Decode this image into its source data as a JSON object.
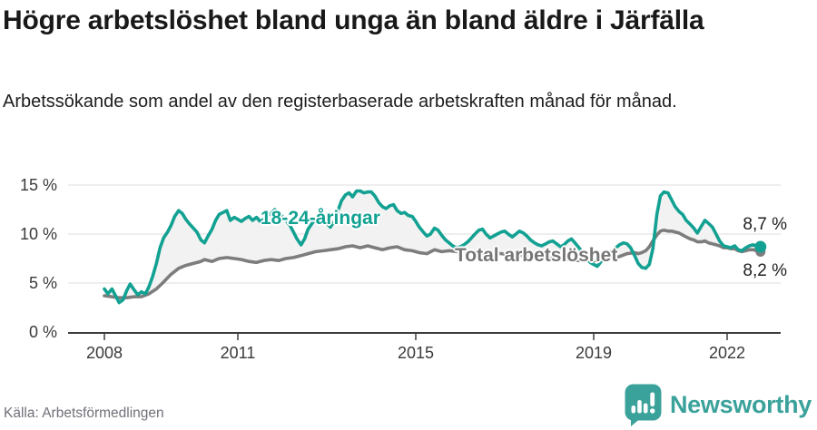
{
  "chart_data": {
    "type": "line",
    "title": "Högre arbetslöshet bland unga än bland äldre i Järfälla",
    "subtitle": "Arbetssökande som andel av den registerbaserade arbetskraften månad för månad.",
    "legend": "direct-labels-on-chart",
    "grid": "horizontal-only",
    "x_axis": {
      "ticks": [
        2008,
        2011,
        2015,
        2019,
        2022
      ],
      "range": [
        2007.2,
        2023.2
      ]
    },
    "y_axis": {
      "ticks": [
        0,
        5,
        10,
        15
      ],
      "tick_labels": [
        "0 %",
        "5 %",
        "10 %",
        "15 %"
      ],
      "range": [
        0,
        16.5
      ],
      "unit": "%"
    },
    "series": [
      {
        "name": "18-24-åringar",
        "color": "#12a192",
        "end_label": "8,7 %",
        "end_value": 8.7,
        "points": [
          [
            2008.0,
            4.4
          ],
          [
            2008.08,
            3.9
          ],
          [
            2008.17,
            4.4
          ],
          [
            2008.25,
            3.7
          ],
          [
            2008.33,
            3.0
          ],
          [
            2008.42,
            3.3
          ],
          [
            2008.5,
            4.2
          ],
          [
            2008.58,
            4.9
          ],
          [
            2008.67,
            4.3
          ],
          [
            2008.75,
            3.8
          ],
          [
            2008.83,
            4.1
          ],
          [
            2008.92,
            3.9
          ],
          [
            2009.0,
            4.6
          ],
          [
            2009.08,
            5.6
          ],
          [
            2009.17,
            7.0
          ],
          [
            2009.25,
            8.6
          ],
          [
            2009.33,
            9.6
          ],
          [
            2009.42,
            10.2
          ],
          [
            2009.5,
            10.9
          ],
          [
            2009.58,
            11.8
          ],
          [
            2009.67,
            12.4
          ],
          [
            2009.75,
            12.1
          ],
          [
            2009.83,
            11.5
          ],
          [
            2009.92,
            11.0
          ],
          [
            2010.0,
            10.6
          ],
          [
            2010.08,
            10.2
          ],
          [
            2010.17,
            9.4
          ],
          [
            2010.25,
            9.1
          ],
          [
            2010.33,
            9.8
          ],
          [
            2010.42,
            10.5
          ],
          [
            2010.5,
            11.4
          ],
          [
            2010.58,
            12.0
          ],
          [
            2010.67,
            12.2
          ],
          [
            2010.75,
            12.4
          ],
          [
            2010.83,
            11.4
          ],
          [
            2010.92,
            11.7
          ],
          [
            2011.0,
            11.5
          ],
          [
            2011.08,
            11.3
          ],
          [
            2011.17,
            11.6
          ],
          [
            2011.25,
            11.8
          ],
          [
            2011.33,
            11.4
          ],
          [
            2011.42,
            11.7
          ],
          [
            2011.5,
            11.3
          ],
          [
            2011.58,
            11.5
          ],
          [
            2011.67,
            11.9
          ],
          [
            2011.75,
            12.1
          ],
          [
            2011.83,
            12.5
          ],
          [
            2011.92,
            12.2
          ],
          [
            2012.0,
            11.8
          ],
          [
            2012.08,
            11.4
          ],
          [
            2012.17,
            10.9
          ],
          [
            2012.25,
            10.2
          ],
          [
            2012.33,
            9.5
          ],
          [
            2012.42,
            8.9
          ],
          [
            2012.5,
            9.5
          ],
          [
            2012.58,
            10.5
          ],
          [
            2012.67,
            11.1
          ],
          [
            2012.75,
            11.5
          ],
          [
            2012.83,
            11.9
          ],
          [
            2012.92,
            11.6
          ],
          [
            2013.0,
            11.1
          ],
          [
            2013.08,
            10.7
          ],
          [
            2013.17,
            11.3
          ],
          [
            2013.25,
            12.4
          ],
          [
            2013.33,
            13.4
          ],
          [
            2013.42,
            14.0
          ],
          [
            2013.5,
            14.2
          ],
          [
            2013.58,
            13.8
          ],
          [
            2013.67,
            14.4
          ],
          [
            2013.75,
            14.4
          ],
          [
            2013.83,
            14.2
          ],
          [
            2013.92,
            14.3
          ],
          [
            2014.0,
            14.3
          ],
          [
            2014.08,
            13.9
          ],
          [
            2014.17,
            13.2
          ],
          [
            2014.25,
            12.8
          ],
          [
            2014.33,
            12.6
          ],
          [
            2014.42,
            12.9
          ],
          [
            2014.5,
            13.0
          ],
          [
            2014.58,
            12.4
          ],
          [
            2014.67,
            12.1
          ],
          [
            2014.75,
            12.2
          ],
          [
            2014.83,
            11.9
          ],
          [
            2014.92,
            11.8
          ],
          [
            2015.0,
            11.3
          ],
          [
            2015.08,
            10.7
          ],
          [
            2015.17,
            10.2
          ],
          [
            2015.25,
            9.8
          ],
          [
            2015.33,
            10.0
          ],
          [
            2015.42,
            10.6
          ],
          [
            2015.5,
            10.4
          ],
          [
            2015.58,
            9.9
          ],
          [
            2015.67,
            9.4
          ],
          [
            2015.75,
            9.1
          ],
          [
            2015.83,
            8.8
          ],
          [
            2015.92,
            8.6
          ],
          [
            2016.0,
            8.7
          ],
          [
            2016.08,
            8.9
          ],
          [
            2016.17,
            9.2
          ],
          [
            2016.25,
            9.6
          ],
          [
            2016.33,
            10.0
          ],
          [
            2016.42,
            10.4
          ],
          [
            2016.5,
            10.5
          ],
          [
            2016.58,
            10.0
          ],
          [
            2016.67,
            9.6
          ],
          [
            2016.75,
            9.8
          ],
          [
            2016.83,
            10.0
          ],
          [
            2016.92,
            10.2
          ],
          [
            2017.0,
            10.3
          ],
          [
            2017.08,
            10.0
          ],
          [
            2017.17,
            9.7
          ],
          [
            2017.25,
            10.0
          ],
          [
            2017.33,
            10.3
          ],
          [
            2017.42,
            10.1
          ],
          [
            2017.5,
            9.8
          ],
          [
            2017.58,
            9.4
          ],
          [
            2017.67,
            9.1
          ],
          [
            2017.75,
            8.9
          ],
          [
            2017.83,
            8.8
          ],
          [
            2017.92,
            9.0
          ],
          [
            2018.0,
            9.2
          ],
          [
            2018.08,
            9.3
          ],
          [
            2018.17,
            9.0
          ],
          [
            2018.25,
            8.7
          ],
          [
            2018.33,
            8.9
          ],
          [
            2018.42,
            9.3
          ],
          [
            2018.5,
            9.5
          ],
          [
            2018.58,
            9.1
          ],
          [
            2018.67,
            8.6
          ],
          [
            2018.75,
            8.1
          ],
          [
            2018.83,
            7.6
          ],
          [
            2018.92,
            7.1
          ],
          [
            2019.0,
            6.9
          ],
          [
            2019.08,
            6.7
          ],
          [
            2019.17,
            7.2
          ],
          [
            2019.25,
            7.7
          ],
          [
            2019.33,
            8.0
          ],
          [
            2019.42,
            8.3
          ],
          [
            2019.5,
            8.6
          ],
          [
            2019.58,
            8.9
          ],
          [
            2019.67,
            9.1
          ],
          [
            2019.75,
            9.0
          ],
          [
            2019.83,
            8.6
          ],
          [
            2019.92,
            7.8
          ],
          [
            2020.0,
            7.0
          ],
          [
            2020.08,
            6.6
          ],
          [
            2020.17,
            6.5
          ],
          [
            2020.25,
            6.9
          ],
          [
            2020.33,
            8.5
          ],
          [
            2020.42,
            12.0
          ],
          [
            2020.5,
            13.9
          ],
          [
            2020.58,
            14.3
          ],
          [
            2020.67,
            14.2
          ],
          [
            2020.75,
            13.5
          ],
          [
            2020.83,
            12.8
          ],
          [
            2020.92,
            12.3
          ],
          [
            2021.0,
            12.0
          ],
          [
            2021.08,
            11.4
          ],
          [
            2021.17,
            11.0
          ],
          [
            2021.25,
            10.6
          ],
          [
            2021.33,
            10.1
          ],
          [
            2021.42,
            10.8
          ],
          [
            2021.5,
            11.4
          ],
          [
            2021.58,
            11.1
          ],
          [
            2021.67,
            10.7
          ],
          [
            2021.75,
            10.0
          ],
          [
            2021.83,
            9.3
          ],
          [
            2021.92,
            8.8
          ],
          [
            2022.0,
            8.7
          ],
          [
            2022.08,
            8.6
          ],
          [
            2022.17,
            8.8
          ],
          [
            2022.25,
            8.4
          ],
          [
            2022.33,
            8.3
          ],
          [
            2022.42,
            8.6
          ],
          [
            2022.5,
            8.8
          ],
          [
            2022.58,
            8.9
          ],
          [
            2022.67,
            8.8
          ],
          [
            2022.75,
            8.7
          ]
        ]
      },
      {
        "name": "Total arbetslöshet",
        "color": "#7d7d7d",
        "end_label": "8,2 %",
        "end_value": 8.2,
        "points": [
          [
            2008.0,
            3.7
          ],
          [
            2008.17,
            3.6
          ],
          [
            2008.33,
            3.5
          ],
          [
            2008.5,
            3.5
          ],
          [
            2008.67,
            3.6
          ],
          [
            2008.83,
            3.6
          ],
          [
            2009.0,
            3.9
          ],
          [
            2009.17,
            4.4
          ],
          [
            2009.33,
            5.1
          ],
          [
            2009.5,
            5.9
          ],
          [
            2009.67,
            6.5
          ],
          [
            2009.83,
            6.8
          ],
          [
            2010.0,
            7.0
          ],
          [
            2010.17,
            7.2
          ],
          [
            2010.25,
            7.4
          ],
          [
            2010.42,
            7.2
          ],
          [
            2010.58,
            7.5
          ],
          [
            2010.75,
            7.6
          ],
          [
            2010.92,
            7.5
          ],
          [
            2011.08,
            7.4
          ],
          [
            2011.25,
            7.2
          ],
          [
            2011.42,
            7.1
          ],
          [
            2011.58,
            7.3
          ],
          [
            2011.75,
            7.4
          ],
          [
            2011.92,
            7.3
          ],
          [
            2012.08,
            7.5
          ],
          [
            2012.25,
            7.6
          ],
          [
            2012.42,
            7.8
          ],
          [
            2012.58,
            8.0
          ],
          [
            2012.75,
            8.2
          ],
          [
            2012.92,
            8.3
          ],
          [
            2013.08,
            8.4
          ],
          [
            2013.25,
            8.5
          ],
          [
            2013.42,
            8.7
          ],
          [
            2013.58,
            8.8
          ],
          [
            2013.75,
            8.6
          ],
          [
            2013.92,
            8.8
          ],
          [
            2014.08,
            8.6
          ],
          [
            2014.25,
            8.4
          ],
          [
            2014.42,
            8.6
          ],
          [
            2014.58,
            8.7
          ],
          [
            2014.75,
            8.4
          ],
          [
            2014.92,
            8.3
          ],
          [
            2015.08,
            8.1
          ],
          [
            2015.25,
            8.0
          ],
          [
            2015.42,
            8.4
          ],
          [
            2015.58,
            8.2
          ],
          [
            2015.75,
            8.3
          ],
          [
            2015.92,
            8.2
          ],
          [
            2016.08,
            8.3
          ],
          [
            2016.25,
            8.2
          ],
          [
            2016.42,
            8.1
          ],
          [
            2016.58,
            8.0
          ],
          [
            2016.75,
            8.1
          ],
          [
            2016.92,
            8.0
          ],
          [
            2017.08,
            7.9
          ],
          [
            2017.25,
            7.9
          ],
          [
            2017.42,
            7.8
          ],
          [
            2017.58,
            7.7
          ],
          [
            2017.75,
            7.6
          ],
          [
            2017.92,
            7.6
          ],
          [
            2018.08,
            7.5
          ],
          [
            2018.25,
            7.4
          ],
          [
            2018.42,
            7.4
          ],
          [
            2018.58,
            7.3
          ],
          [
            2018.75,
            7.3
          ],
          [
            2018.92,
            7.3
          ],
          [
            2019.08,
            7.3
          ],
          [
            2019.25,
            7.4
          ],
          [
            2019.42,
            7.5
          ],
          [
            2019.58,
            7.7
          ],
          [
            2019.75,
            8.0
          ],
          [
            2019.92,
            8.1
          ],
          [
            2020.0,
            8.0
          ],
          [
            2020.08,
            8.1
          ],
          [
            2020.17,
            8.3
          ],
          [
            2020.25,
            8.7
          ],
          [
            2020.33,
            9.3
          ],
          [
            2020.42,
            9.9
          ],
          [
            2020.5,
            10.3
          ],
          [
            2020.58,
            10.4
          ],
          [
            2020.67,
            10.3
          ],
          [
            2020.75,
            10.3
          ],
          [
            2020.83,
            10.2
          ],
          [
            2020.92,
            10.1
          ],
          [
            2021.0,
            9.9
          ],
          [
            2021.08,
            9.7
          ],
          [
            2021.17,
            9.5
          ],
          [
            2021.25,
            9.4
          ],
          [
            2021.33,
            9.2
          ],
          [
            2021.42,
            9.2
          ],
          [
            2021.5,
            9.3
          ],
          [
            2021.58,
            9.1
          ],
          [
            2021.67,
            9.0
          ],
          [
            2021.75,
            8.9
          ],
          [
            2021.83,
            8.8
          ],
          [
            2021.92,
            8.6
          ],
          [
            2022.0,
            8.6
          ],
          [
            2022.08,
            8.5
          ],
          [
            2022.17,
            8.5
          ],
          [
            2022.25,
            8.3
          ],
          [
            2022.33,
            8.2
          ],
          [
            2022.42,
            8.3
          ],
          [
            2022.5,
            8.4
          ],
          [
            2022.58,
            8.4
          ],
          [
            2022.67,
            8.3
          ],
          [
            2022.75,
            8.2
          ]
        ]
      }
    ]
  },
  "footer": {
    "source": "Källa: Arbetsförmedlingen",
    "brand": "Newsworthy"
  },
  "colors": {
    "accent_teal": "#12a192",
    "line_gray": "#7d7d7d",
    "band_fill": "#f2f2f2",
    "grid": "#dcdcdc",
    "axis": "#3d3d3d",
    "logo_teal": "#3ba29b",
    "end_label_text": "#1f1f1f"
  }
}
